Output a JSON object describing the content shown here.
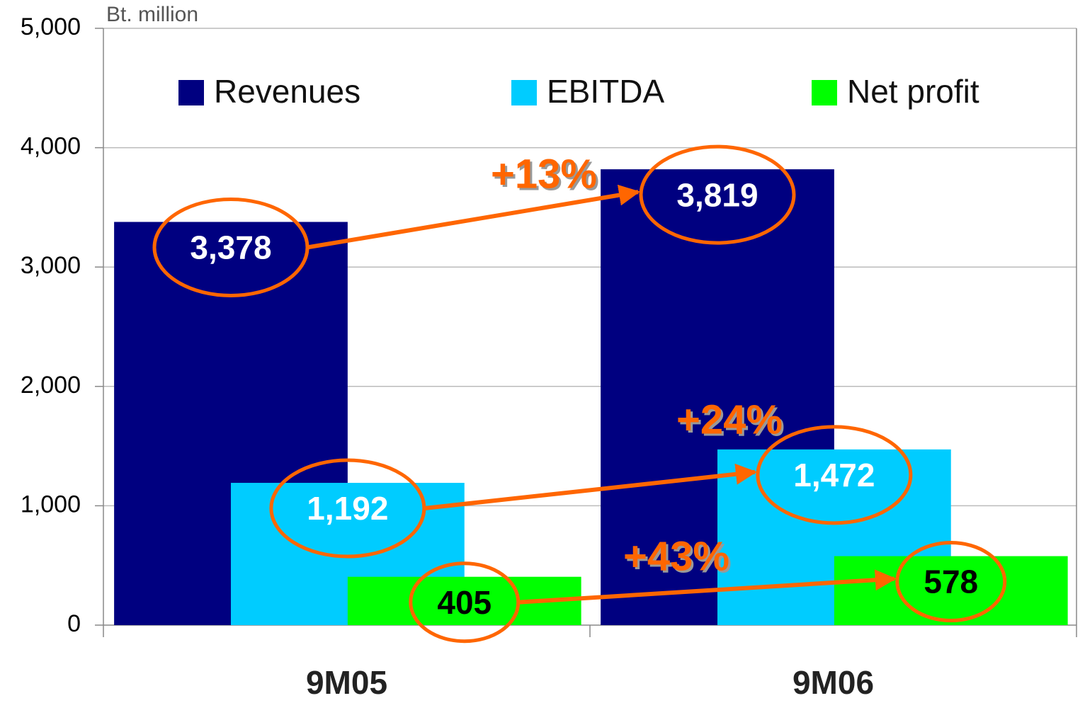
{
  "chart_data": {
    "type": "bar",
    "y_axis_label": "Bt. million",
    "categories": [
      "9M05",
      "9M06"
    ],
    "series": [
      {
        "name": "Revenues",
        "color": "#000080",
        "values": [
          3378,
          3819
        ],
        "value_labels": [
          "3,378",
          "3,819"
        ]
      },
      {
        "name": "EBITDA",
        "color": "#00ccff",
        "values": [
          1192,
          1472
        ],
        "value_labels": [
          "1,192",
          "1,472"
        ]
      },
      {
        "name": "Net profit",
        "color": "#00ff00",
        "values": [
          405,
          578
        ],
        "value_labels": [
          "405",
          "578"
        ]
      }
    ],
    "annotations": [
      "+13%",
      "+24%",
      "+43%"
    ],
    "ylim": [
      0,
      5000
    ],
    "yticks": [
      0,
      {
        "value": 1000,
        "label": "1,000"
      },
      {
        "value": 2000,
        "label": "2,000"
      },
      {
        "value": 3000,
        "label": "3,000"
      },
      {
        "value": 4000,
        "label": "4,000"
      },
      {
        "value": 5000,
        "label": "5,000"
      }
    ],
    "grid": true,
    "legend": "top"
  }
}
